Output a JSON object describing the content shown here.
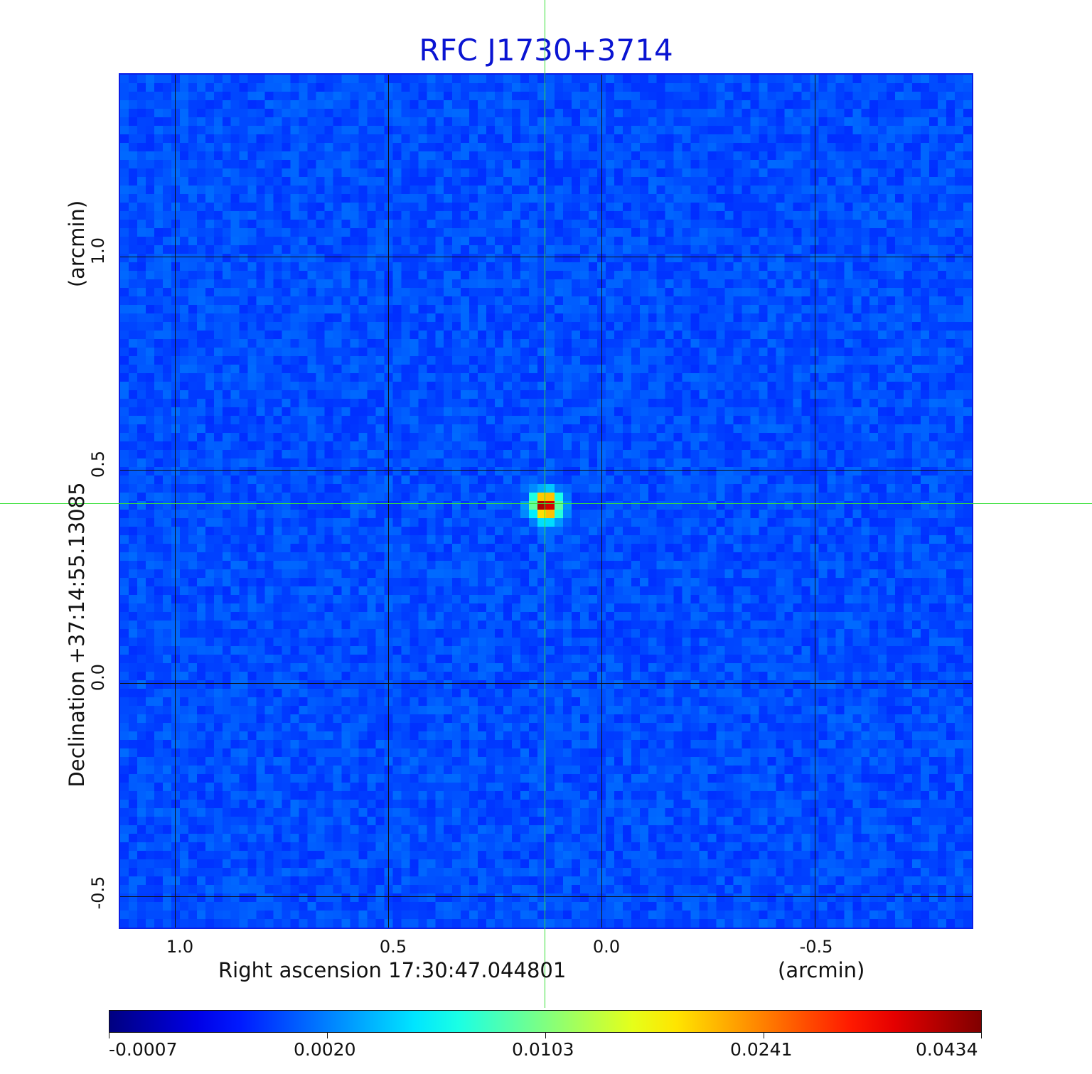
{
  "chart_data": {
    "type": "heatmap",
    "title": "RFC J1730+3714",
    "xlabel": "Right ascension  17:30:47.044801",
    "xunit": "(arcmin)",
    "ylabel": "Declination  +37:14:55.13085",
    "yunit": "(arcmin)",
    "x_ticks": [
      "1.0",
      "0.5",
      "0.0",
      "-0.5"
    ],
    "y_ticks": [
      "1.0",
      "0.5",
      "0.0",
      "-0.5"
    ],
    "xlim": [
      1.13,
      -0.87
    ],
    "ylim": [
      -0.57,
      1.43
    ],
    "grid": true,
    "crosshair": {
      "x": 0.13,
      "y": 0.42
    },
    "source_peak": {
      "x": 0.13,
      "y": 0.42,
      "value": 0.0434
    },
    "colorbar": {
      "colormap": "jet",
      "labels": [
        "-0.0007",
        "0.0020",
        "0.0103",
        "0.0241",
        "0.0434"
      ],
      "min": -0.0007,
      "max": 0.0434
    }
  }
}
